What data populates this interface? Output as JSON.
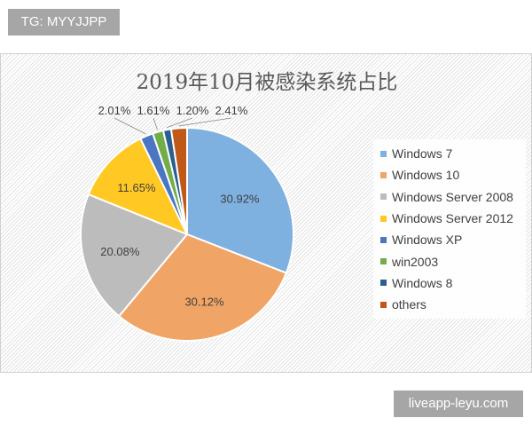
{
  "tag": "TG: MYYJJPP",
  "watermark": "liveapp-leyu.com",
  "chart_data": {
    "type": "pie",
    "title": "2019年10月被感染系统占比",
    "categories": [
      "Windows 7",
      "Windows 10",
      "Windows Server 2008",
      "Windows Server 2012",
      "Windows XP",
      "win2003",
      "Windows 8",
      "others"
    ],
    "values": [
      30.92,
      30.12,
      20.08,
      11.65,
      2.01,
      1.61,
      1.2,
      2.41
    ],
    "labels": [
      "30.92%",
      "30.12%",
      "20.08%",
      "11.65%",
      "2.01%",
      "1.61%",
      "1.20%",
      "2.41%"
    ],
    "colors": [
      "#7eb0e0",
      "#f0a465",
      "#bcbcbc",
      "#ffc822",
      "#4a76c2",
      "#72ad4a",
      "#2a5f8f",
      "#c0581a"
    ],
    "legend": "right"
  }
}
